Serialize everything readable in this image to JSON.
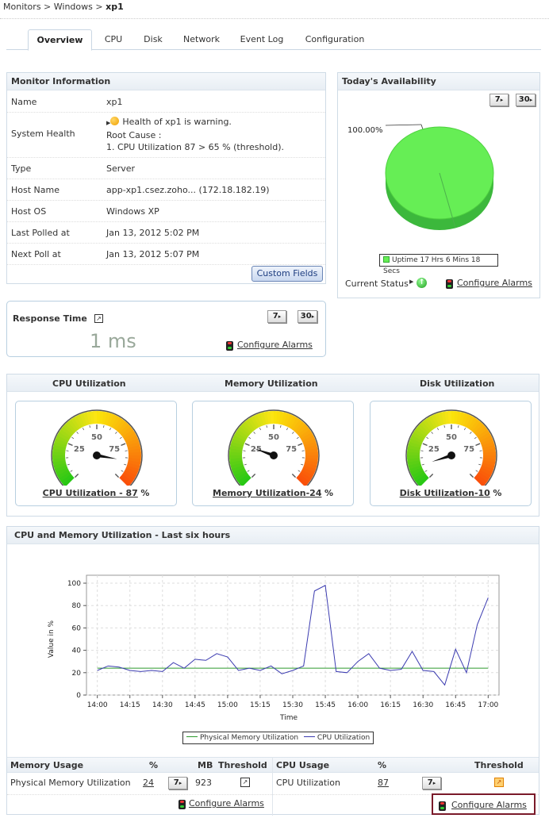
{
  "breadcrumb": {
    "part1": "Monitors",
    "sep": ">",
    "part2": "Windows",
    "current": "xp1"
  },
  "tabs": [
    "Overview",
    "CPU",
    "Disk",
    "Network",
    "Event Log",
    "Configuration"
  ],
  "monitor_info": {
    "title": "Monitor Information",
    "rows": [
      {
        "key": "Name",
        "value": "xp1"
      },
      {
        "key": "System Health",
        "line1": "Health of xp1 is warning.",
        "line2": "Root Cause :",
        "line3": "1. CPU Utilization 87 > 65 % (threshold)."
      },
      {
        "key": "Type",
        "value": "Server"
      },
      {
        "key": "Host Name",
        "value": "app-xp1.csez.zoho... (172.18.182.19)"
      },
      {
        "key": "Host OS",
        "value": "Windows XP"
      },
      {
        "key": "Last Polled at",
        "value": "Jan 13, 2012 5:02 PM"
      },
      {
        "key": "Next Poll at",
        "value": "Jan 13, 2012 5:07 PM"
      }
    ],
    "custom_fields": "Custom Fields"
  },
  "availability": {
    "title": "Today's Availability",
    "btn7": "7",
    "btn30": "30",
    "percent_label": "100.00%",
    "uptime_percent": 100,
    "legend": "Uptime 17 Hrs 6 Mins 18 Secs",
    "current_status": "Current Status",
    "configure_alarms": "Configure Alarms",
    "colors": {
      "up": "#66ee55"
    }
  },
  "response_time": {
    "title": "Response Time",
    "value": "1 ms",
    "btn7": "7",
    "btn30": "30",
    "configure_alarms": "Configure Alarms"
  },
  "gauges": {
    "headers": [
      "CPU Utilization",
      "Memory Utilization",
      "Disk Utilization"
    ],
    "items": [
      {
        "link": "CPU Utilization - 87",
        "unit": "%",
        "value": 87
      },
      {
        "link": "Memory Utilization-24",
        "unit": "%",
        "value": 24
      },
      {
        "link": "Disk Utilization-10",
        "unit": "%",
        "value": 10
      }
    ],
    "tick_labels": [
      "25",
      "50",
      "75"
    ]
  },
  "chart_section": {
    "title": "CPU and Memory Utilization - Last six hours"
  },
  "chart_data": {
    "type": "line",
    "xlabel": "Time",
    "ylabel": "Value in %",
    "ylim": [
      0,
      100
    ],
    "yticks": [
      0,
      20,
      40,
      60,
      80,
      100
    ],
    "xticks": [
      "14:00",
      "14:15",
      "14:30",
      "14:45",
      "15:00",
      "15:15",
      "15:30",
      "15:45",
      "16:00",
      "16:15",
      "16:30",
      "16:45",
      "17:00"
    ],
    "xrange_minutes": [
      -5,
      185
    ],
    "series": [
      {
        "name": "Physical Memory Utilization",
        "color": "#2e9a2e",
        "x": [
          0,
          180
        ],
        "values": [
          24,
          24
        ]
      },
      {
        "name": "CPU Utilization",
        "color": "#3b3bb0",
        "x": [
          0,
          5,
          10,
          15,
          20,
          25,
          30,
          35,
          40,
          45,
          50,
          55,
          60,
          65,
          70,
          75,
          80,
          85,
          90,
          95,
          100,
          105,
          110,
          115,
          120,
          125,
          130,
          135,
          140,
          145,
          150,
          155,
          160,
          165,
          170,
          175,
          180
        ],
        "values": [
          22,
          26,
          25,
          22,
          21,
          22,
          21,
          29,
          24,
          32,
          31,
          37,
          34,
          22,
          24,
          22,
          26,
          19,
          22,
          26,
          93,
          98,
          21,
          20,
          30,
          37,
          24,
          22,
          23,
          39,
          22,
          21,
          9,
          41,
          20,
          63,
          87
        ]
      }
    ],
    "legend_position": "bottom"
  },
  "memory_usage": {
    "headers": {
      "title": "Memory Usage",
      "pct": "%",
      "mb": "MB",
      "threshold": "Threshold"
    },
    "row": {
      "label": "Physical Memory Utilization",
      "pct": "24",
      "btn": "7",
      "mb": "923"
    },
    "configure_alarms": "Configure Alarms"
  },
  "cpu_usage": {
    "headers": {
      "title": "CPU Usage",
      "pct": "%",
      "threshold": "Threshold"
    },
    "row": {
      "label": "CPU Utilization",
      "pct": "87",
      "btn": "7"
    },
    "configure_alarms": "Configure Alarms"
  }
}
